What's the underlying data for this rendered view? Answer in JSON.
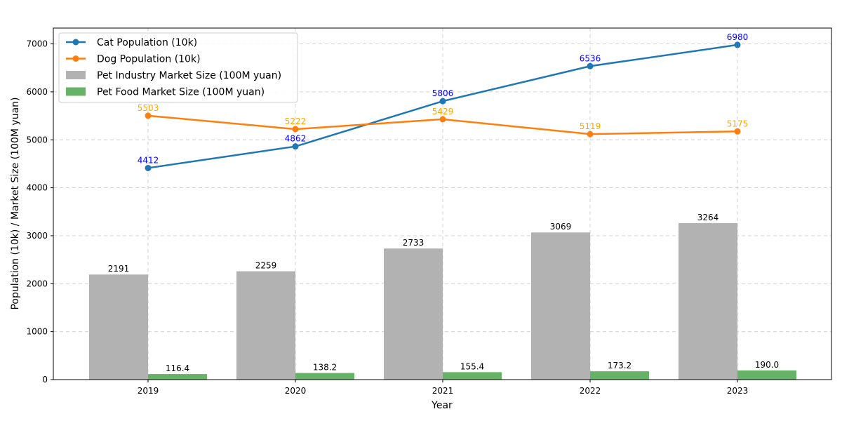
{
  "chart_data": {
    "type": "bar",
    "categories": [
      "2019",
      "2020",
      "2021",
      "2022",
      "2023"
    ],
    "xlabel": "Year",
    "ylabel": "Population (10k) / Market Size (100M yuan)",
    "ylim": [
      0,
      7330
    ],
    "yticks": [
      0,
      1000,
      2000,
      3000,
      4000,
      5000,
      6000,
      7000
    ],
    "grid": true,
    "legend_position": "top-left",
    "bar_series": [
      {
        "name": "Pet Industry Market Size (100M yuan)",
        "values": [
          2191,
          2259,
          2733,
          3069,
          3264
        ],
        "labels": [
          "2191",
          "2259",
          "2733",
          "3069",
          "3264"
        ],
        "color": "#b2b2b2",
        "label_color": "#000000"
      },
      {
        "name": "Pet Food Market Size (100M yuan)",
        "values": [
          116.4,
          138.2,
          155.4,
          173.2,
          190.0
        ],
        "labels": [
          "116.4",
          "138.2",
          "155.4",
          "173.2",
          "190.0"
        ],
        "color": "#66b266",
        "label_color": "#000000"
      }
    ],
    "line_series": [
      {
        "name": "Cat Population (10k)",
        "values": [
          4412,
          4862,
          5806,
          6536,
          6980
        ],
        "labels": [
          "4412",
          "4862",
          "5806",
          "6536",
          "6980"
        ],
        "color": "#1f77b4",
        "label_color": "#0000ff"
      },
      {
        "name": "Dog Population (10k)",
        "values": [
          5503,
          5222,
          5429,
          5119,
          5175
        ],
        "labels": [
          "5503",
          "5222",
          "5429",
          "5119",
          "5175"
        ],
        "color": "#ff7f0e",
        "label_color": "#ffa500"
      }
    ]
  }
}
